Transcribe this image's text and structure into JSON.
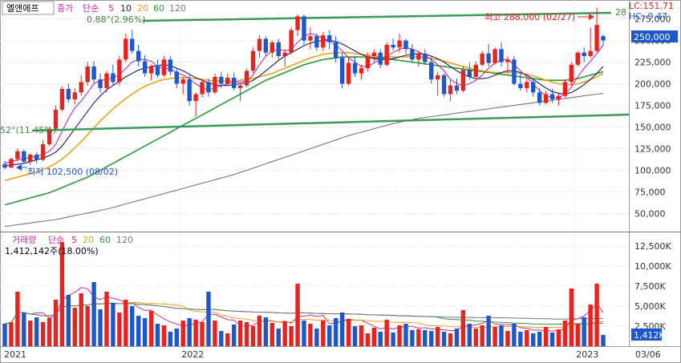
{
  "header": {
    "stock_name": "엘앤에프",
    "price_label": "종가",
    "ma_label": "단순",
    "ma_periods": [
      "5",
      "10",
      "20",
      "60",
      "120"
    ],
    "lc": "LC:151.71",
    "hc": "HC:-9.47"
  },
  "volume_header": {
    "label": "거래량",
    "ma_label": "단순",
    "ma_periods": [
      "5",
      "20",
      "60",
      "120"
    ],
    "info": "1,412,142주(18.00%)"
  },
  "annotations": {
    "high": "최고 288,000 (02/27)",
    "low": "최저 102,500 (08/02)",
    "top_line_start": "0.88°(2.96%)",
    "bottom_line_start": "52°(11.45%)",
    "top_line_end": "28",
    "current_price": "250,000",
    "current_volume": "1,412K"
  },
  "colors": {
    "up": "#e8231f",
    "down": "#1f57c8",
    "ma5": "#cc2aa8",
    "ma10": "#1a1a6e",
    "ma20": "#e8a31a",
    "ma60": "#2a9a3a",
    "ma120": "#777777",
    "trendline": "#3a9a5a"
  },
  "chart_data": [
    {
      "type": "candlestick",
      "title": "엘앤에프",
      "ylim": [
        30000,
        295000
      ],
      "y_ticks": [
        "275,000",
        "250,000",
        "225,000",
        "200,000",
        "175,000",
        "150,000",
        "125,000",
        "100,000",
        "75,000",
        "50,000"
      ],
      "y_tick_values": [
        275000,
        250000,
        225000,
        200000,
        175000,
        150000,
        125000,
        100000,
        75000,
        50000
      ],
      "x_ticks": [
        "2021",
        "2022",
        "2023",
        "03/06"
      ],
      "candles": [
        [
          107000,
          111000,
          101000,
          103000
        ],
        [
          103000,
          115000,
          102500,
          113000
        ],
        [
          113000,
          125000,
          110000,
          122000
        ],
        [
          122000,
          124000,
          108000,
          110000
        ],
        [
          110000,
          120000,
          106000,
          118000
        ],
        [
          118000,
          121000,
          108000,
          112000
        ],
        [
          112000,
          135000,
          110000,
          130000
        ],
        [
          130000,
          150000,
          128000,
          148000
        ],
        [
          148000,
          175000,
          146000,
          170000
        ],
        [
          170000,
          197000,
          168000,
          194000
        ],
        [
          194000,
          200000,
          178000,
          182000
        ],
        [
          182000,
          195000,
          176000,
          190000
        ],
        [
          190000,
          210000,
          186000,
          202000
        ],
        [
          202000,
          225000,
          198000,
          220000
        ],
        [
          220000,
          226000,
          200000,
          205000
        ],
        [
          205000,
          212000,
          190000,
          195000
        ],
        [
          195000,
          215000,
          190000,
          212000
        ],
        [
          212000,
          222000,
          198000,
          202000
        ],
        [
          202000,
          232000,
          198000,
          228000
        ],
        [
          228000,
          258000,
          225000,
          252000
        ],
        [
          252000,
          262000,
          235000,
          238000
        ],
        [
          238000,
          245000,
          220000,
          226000
        ],
        [
          226000,
          233000,
          208000,
          212000
        ],
        [
          212000,
          222000,
          204000,
          220000
        ],
        [
          220000,
          228000,
          207000,
          210000
        ],
        [
          210000,
          232000,
          208000,
          228000
        ],
        [
          228000,
          232000,
          210000,
          214000
        ],
        [
          214000,
          218000,
          195000,
          200000
        ],
        [
          200000,
          208000,
          188000,
          205000
        ],
        [
          205000,
          210000,
          175000,
          180000
        ],
        [
          180000,
          190000,
          162000,
          188000
        ],
        [
          188000,
          205000,
          184000,
          202000
        ],
        [
          202000,
          206000,
          185000,
          190000
        ],
        [
          190000,
          212000,
          188000,
          208000
        ],
        [
          208000,
          214000,
          195000,
          200000
        ],
        [
          200000,
          212000,
          197000,
          207000
        ],
        [
          207000,
          213000,
          192000,
          195000
        ],
        [
          195000,
          200000,
          180000,
          198000
        ],
        [
          198000,
          218000,
          196000,
          215000
        ],
        [
          215000,
          242000,
          212000,
          238000
        ],
        [
          238000,
          256000,
          230000,
          252000
        ],
        [
          252000,
          255000,
          232000,
          236000
        ],
        [
          236000,
          250000,
          230000,
          248000
        ],
        [
          248000,
          252000,
          228000,
          232000
        ],
        [
          232000,
          240000,
          220000,
          236000
        ],
        [
          236000,
          265000,
          234000,
          262000
        ],
        [
          262000,
          280000,
          255000,
          278000
        ],
        [
          278000,
          280000,
          245000,
          250000
        ],
        [
          250000,
          265000,
          240000,
          255000
        ],
        [
          255000,
          258000,
          238000,
          242000
        ],
        [
          242000,
          260000,
          238000,
          256000
        ],
        [
          256000,
          262000,
          240000,
          248000
        ],
        [
          248000,
          255000,
          225000,
          230000
        ],
        [
          230000,
          236000,
          195000,
          200000
        ],
        [
          200000,
          230000,
          198000,
          224000
        ],
        [
          224000,
          232000,
          208000,
          212000
        ],
        [
          212000,
          222000,
          205000,
          218000
        ],
        [
          218000,
          236000,
          214000,
          232000
        ],
        [
          232000,
          240000,
          225000,
          236000
        ],
        [
          236000,
          240000,
          218000,
          222000
        ],
        [
          222000,
          248000,
          220000,
          245000
        ],
        [
          245000,
          252000,
          238000,
          242000
        ],
        [
          242000,
          258000,
          236000,
          250000
        ],
        [
          250000,
          252000,
          235000,
          240000
        ],
        [
          240000,
          246000,
          224000,
          228000
        ],
        [
          228000,
          238000,
          220000,
          235000
        ],
        [
          235000,
          240000,
          222000,
          225000
        ],
        [
          225000,
          232000,
          200000,
          205000
        ],
        [
          205000,
          214000,
          186000,
          210000
        ],
        [
          210000,
          212000,
          185000,
          188000
        ],
        [
          188000,
          205000,
          180000,
          198000
        ],
        [
          198000,
          206000,
          188000,
          192000
        ],
        [
          192000,
          220000,
          190000,
          216000
        ],
        [
          216000,
          224000,
          205000,
          208000
        ],
        [
          208000,
          226000,
          206000,
          222000
        ],
        [
          222000,
          238000,
          220000,
          235000
        ],
        [
          235000,
          246000,
          220000,
          224000
        ],
        [
          224000,
          242000,
          222000,
          240000
        ],
        [
          240000,
          248000,
          220000,
          225000
        ],
        [
          225000,
          232000,
          212000,
          228000
        ],
        [
          228000,
          232000,
          198000,
          200000
        ],
        [
          200000,
          212000,
          192000,
          195000
        ],
        [
          195000,
          206000,
          190000,
          202000
        ],
        [
          202000,
          206000,
          185000,
          190000
        ],
        [
          190000,
          195000,
          175000,
          178000
        ],
        [
          178000,
          192000,
          176000,
          188000
        ],
        [
          188000,
          194000,
          178000,
          182000
        ],
        [
          182000,
          190000,
          175000,
          186000
        ],
        [
          186000,
          205000,
          184000,
          202000
        ],
        [
          202000,
          225000,
          198000,
          222000
        ],
        [
          222000,
          238000,
          220000,
          236000
        ],
        [
          236000,
          242000,
          225000,
          232000
        ],
        [
          232000,
          265000,
          230000,
          238000
        ],
        [
          238000,
          288000,
          236000,
          268000
        ],
        [
          255000,
          257000,
          244000,
          250000
        ]
      ],
      "ma5": [
        108000,
        110000,
        112000,
        113000,
        115000,
        116000,
        118000,
        122000,
        130000,
        145000,
        160000,
        172000,
        180000,
        190000,
        200000,
        204000,
        205000,
        207000,
        210000,
        218000,
        225000,
        228000,
        228000,
        226000,
        220000,
        218000,
        217000,
        213000,
        210000,
        206000,
        200000,
        195000,
        193000,
        195000,
        198000,
        200000,
        202000,
        202000,
        203000,
        210000,
        222000,
        232000,
        238000,
        240000,
        238000,
        240000,
        248000,
        255000,
        258000,
        256000,
        252000,
        250000,
        245000,
        238000,
        230000,
        225000,
        220000,
        220000,
        224000,
        228000,
        232000,
        236000,
        240000,
        242000,
        240000,
        237000,
        233000,
        228000,
        222000,
        215000,
        205000,
        200000,
        198000,
        200000,
        204000,
        210000,
        218000,
        224000,
        228000,
        228000,
        222000,
        215000,
        208000,
        200000,
        192000,
        186000,
        184000,
        184000,
        188000,
        196000,
        208000,
        218000,
        226000,
        235000,
        245000
      ],
      "ma10": [
        105000,
        106000,
        107000,
        108000,
        110000,
        112000,
        114000,
        117000,
        121000,
        128000,
        138000,
        148000,
        158000,
        168000,
        178000,
        186000,
        193000,
        198000,
        203000,
        208000,
        212000,
        216000,
        218000,
        220000,
        221000,
        222000,
        221000,
        218000,
        215000,
        211000,
        207000,
        204000,
        201000,
        199000,
        198000,
        198000,
        199000,
        200000,
        201000,
        204000,
        209000,
        215000,
        221000,
        227000,
        232000,
        236000,
        240000,
        244000,
        247000,
        249000,
        250000,
        250000,
        249000,
        246000,
        242000,
        238000,
        234000,
        231000,
        229000,
        228000,
        228000,
        229000,
        231000,
        233000,
        234000,
        235000,
        234000,
        232000,
        229000,
        225000,
        220000,
        215000,
        211000,
        208000,
        206000,
        206000,
        207000,
        210000,
        213000,
        215000,
        215000,
        213000,
        210000,
        205000,
        200000,
        195000,
        191000,
        189000,
        188000,
        190000,
        194000,
        199000,
        205000,
        212000,
        220000
      ],
      "ma20": [
        88000,
        90000,
        92000,
        94000,
        96000,
        98000,
        101000,
        104000,
        108000,
        113000,
        119000,
        126000,
        133000,
        141000,
        149000,
        157000,
        164000,
        171000,
        177000,
        183000,
        188000,
        193000,
        197000,
        200000,
        203000,
        205000,
        206000,
        207000,
        207000,
        207000,
        206000,
        205000,
        204000,
        203000,
        203000,
        203000,
        203000,
        204000,
        205000,
        206000,
        208000,
        210000,
        212000,
        215000,
        218000,
        221000,
        224000,
        227000,
        230000,
        232000,
        234000,
        235000,
        236000,
        236000,
        236000,
        235000,
        234000,
        233000,
        232000,
        231000,
        231000,
        231000,
        231000,
        231000,
        231000,
        231000,
        230000,
        229000,
        228000,
        226000,
        224000,
        222000,
        220000,
        218000,
        216000,
        215000,
        214000,
        213000,
        213000,
        213000,
        213000,
        212000,
        211000,
        209000,
        207000,
        204000,
        202000,
        200000,
        199000,
        199000,
        200000,
        202000,
        205000,
        208000,
        212000
      ],
      "ma60": [
        60000,
        62000,
        64000,
        66000,
        68000,
        70000,
        72000,
        74000,
        77000,
        80000,
        83000,
        86000,
        89000,
        92000,
        96000,
        100000,
        104000,
        108000,
        112000,
        116000,
        120000,
        124000,
        128000,
        132000,
        136000,
        140000,
        144000,
        148000,
        152000,
        156000,
        160000,
        164000,
        168000,
        172000,
        176000,
        180000,
        184000,
        188000,
        192000,
        196000,
        200000,
        204000,
        207000,
        210000,
        213000,
        216000,
        219000,
        222000,
        224000,
        226000,
        228000,
        229000,
        230000,
        231000,
        231000,
        231000,
        231000,
        231000,
        230000,
        230000,
        229000,
        228000,
        227000,
        226000,
        225000,
        224000,
        223000,
        222000,
        221000,
        220000,
        219000,
        218000,
        217000,
        216000,
        215000,
        214000,
        213000,
        212000,
        211000,
        210000,
        209000,
        208000,
        207000,
        206000,
        205000,
        204000,
        204000,
        204000,
        204000,
        205000,
        206000,
        208000,
        210000,
        212000,
        214000
      ],
      "ma120": [
        35000,
        36000,
        37000,
        38000,
        39000,
        40000,
        41000,
        42000,
        43000,
        44500,
        46000,
        47500,
        49000,
        50500,
        52000,
        53500,
        55000,
        57000,
        59000,
        61000,
        63000,
        65000,
        67000,
        69000,
        71000,
        73000,
        75000,
        77000,
        79000,
        81000,
        83000,
        85000,
        87000,
        89000,
        91000,
        93000,
        95000,
        97500,
        100000,
        102500,
        105000,
        107500,
        110000,
        112500,
        115000,
        117500,
        120000,
        122500,
        125000,
        127500,
        130000,
        132500,
        135000,
        137500,
        140000,
        142000,
        144000,
        146000,
        148000,
        150000,
        152000,
        154000,
        155500,
        157000,
        158500,
        160000,
        161000,
        162000,
        163000,
        164000,
        165000,
        166000,
        167000,
        168000,
        169000,
        170000,
        171000,
        172000,
        173000,
        174000,
        175000,
        176000,
        177000,
        178000,
        179000,
        180000,
        181000,
        182000,
        183000,
        184000,
        185000,
        186000,
        187000,
        188000,
        189000
      ]
    },
    {
      "type": "bar",
      "title": "거래량",
      "ylim": [
        0,
        14000
      ],
      "y_ticks": [
        "12,500K",
        "10,000K",
        "7,500K",
        "5,000K",
        "2,500K"
      ],
      "y_tick_values": [
        12500,
        10000,
        7500,
        5000,
        2500
      ],
      "values": [
        2800,
        3000,
        6800,
        4200,
        3200,
        3600,
        3000,
        3500,
        5800,
        13000,
        6400,
        4800,
        6600,
        5000,
        8000,
        4600,
        6800,
        5400,
        4200,
        5800,
        5000,
        3800,
        3500,
        4400,
        2800,
        2600,
        1800,
        2200,
        3200,
        3500,
        3300,
        3000,
        6800,
        3200,
        1900,
        1600,
        2700,
        3200,
        3000,
        2500,
        3800,
        3600,
        2900,
        2200,
        3100,
        2500,
        7800,
        3200,
        2800,
        2200,
        3200,
        2600,
        3500,
        4200,
        3400,
        2500,
        2600,
        1600,
        2300,
        1800,
        3300,
        1700,
        2600,
        2800,
        2000,
        2100,
        2000,
        1900,
        2400,
        1800,
        1600,
        2200,
        4500,
        2800,
        2200,
        2600,
        3800,
        2400,
        2600,
        1900,
        2800,
        1800,
        2000,
        1600,
        1800,
        2400,
        1700,
        2100,
        3200,
        7200,
        2800,
        3600,
        5200,
        7800,
        1412
      ]
    }
  ]
}
